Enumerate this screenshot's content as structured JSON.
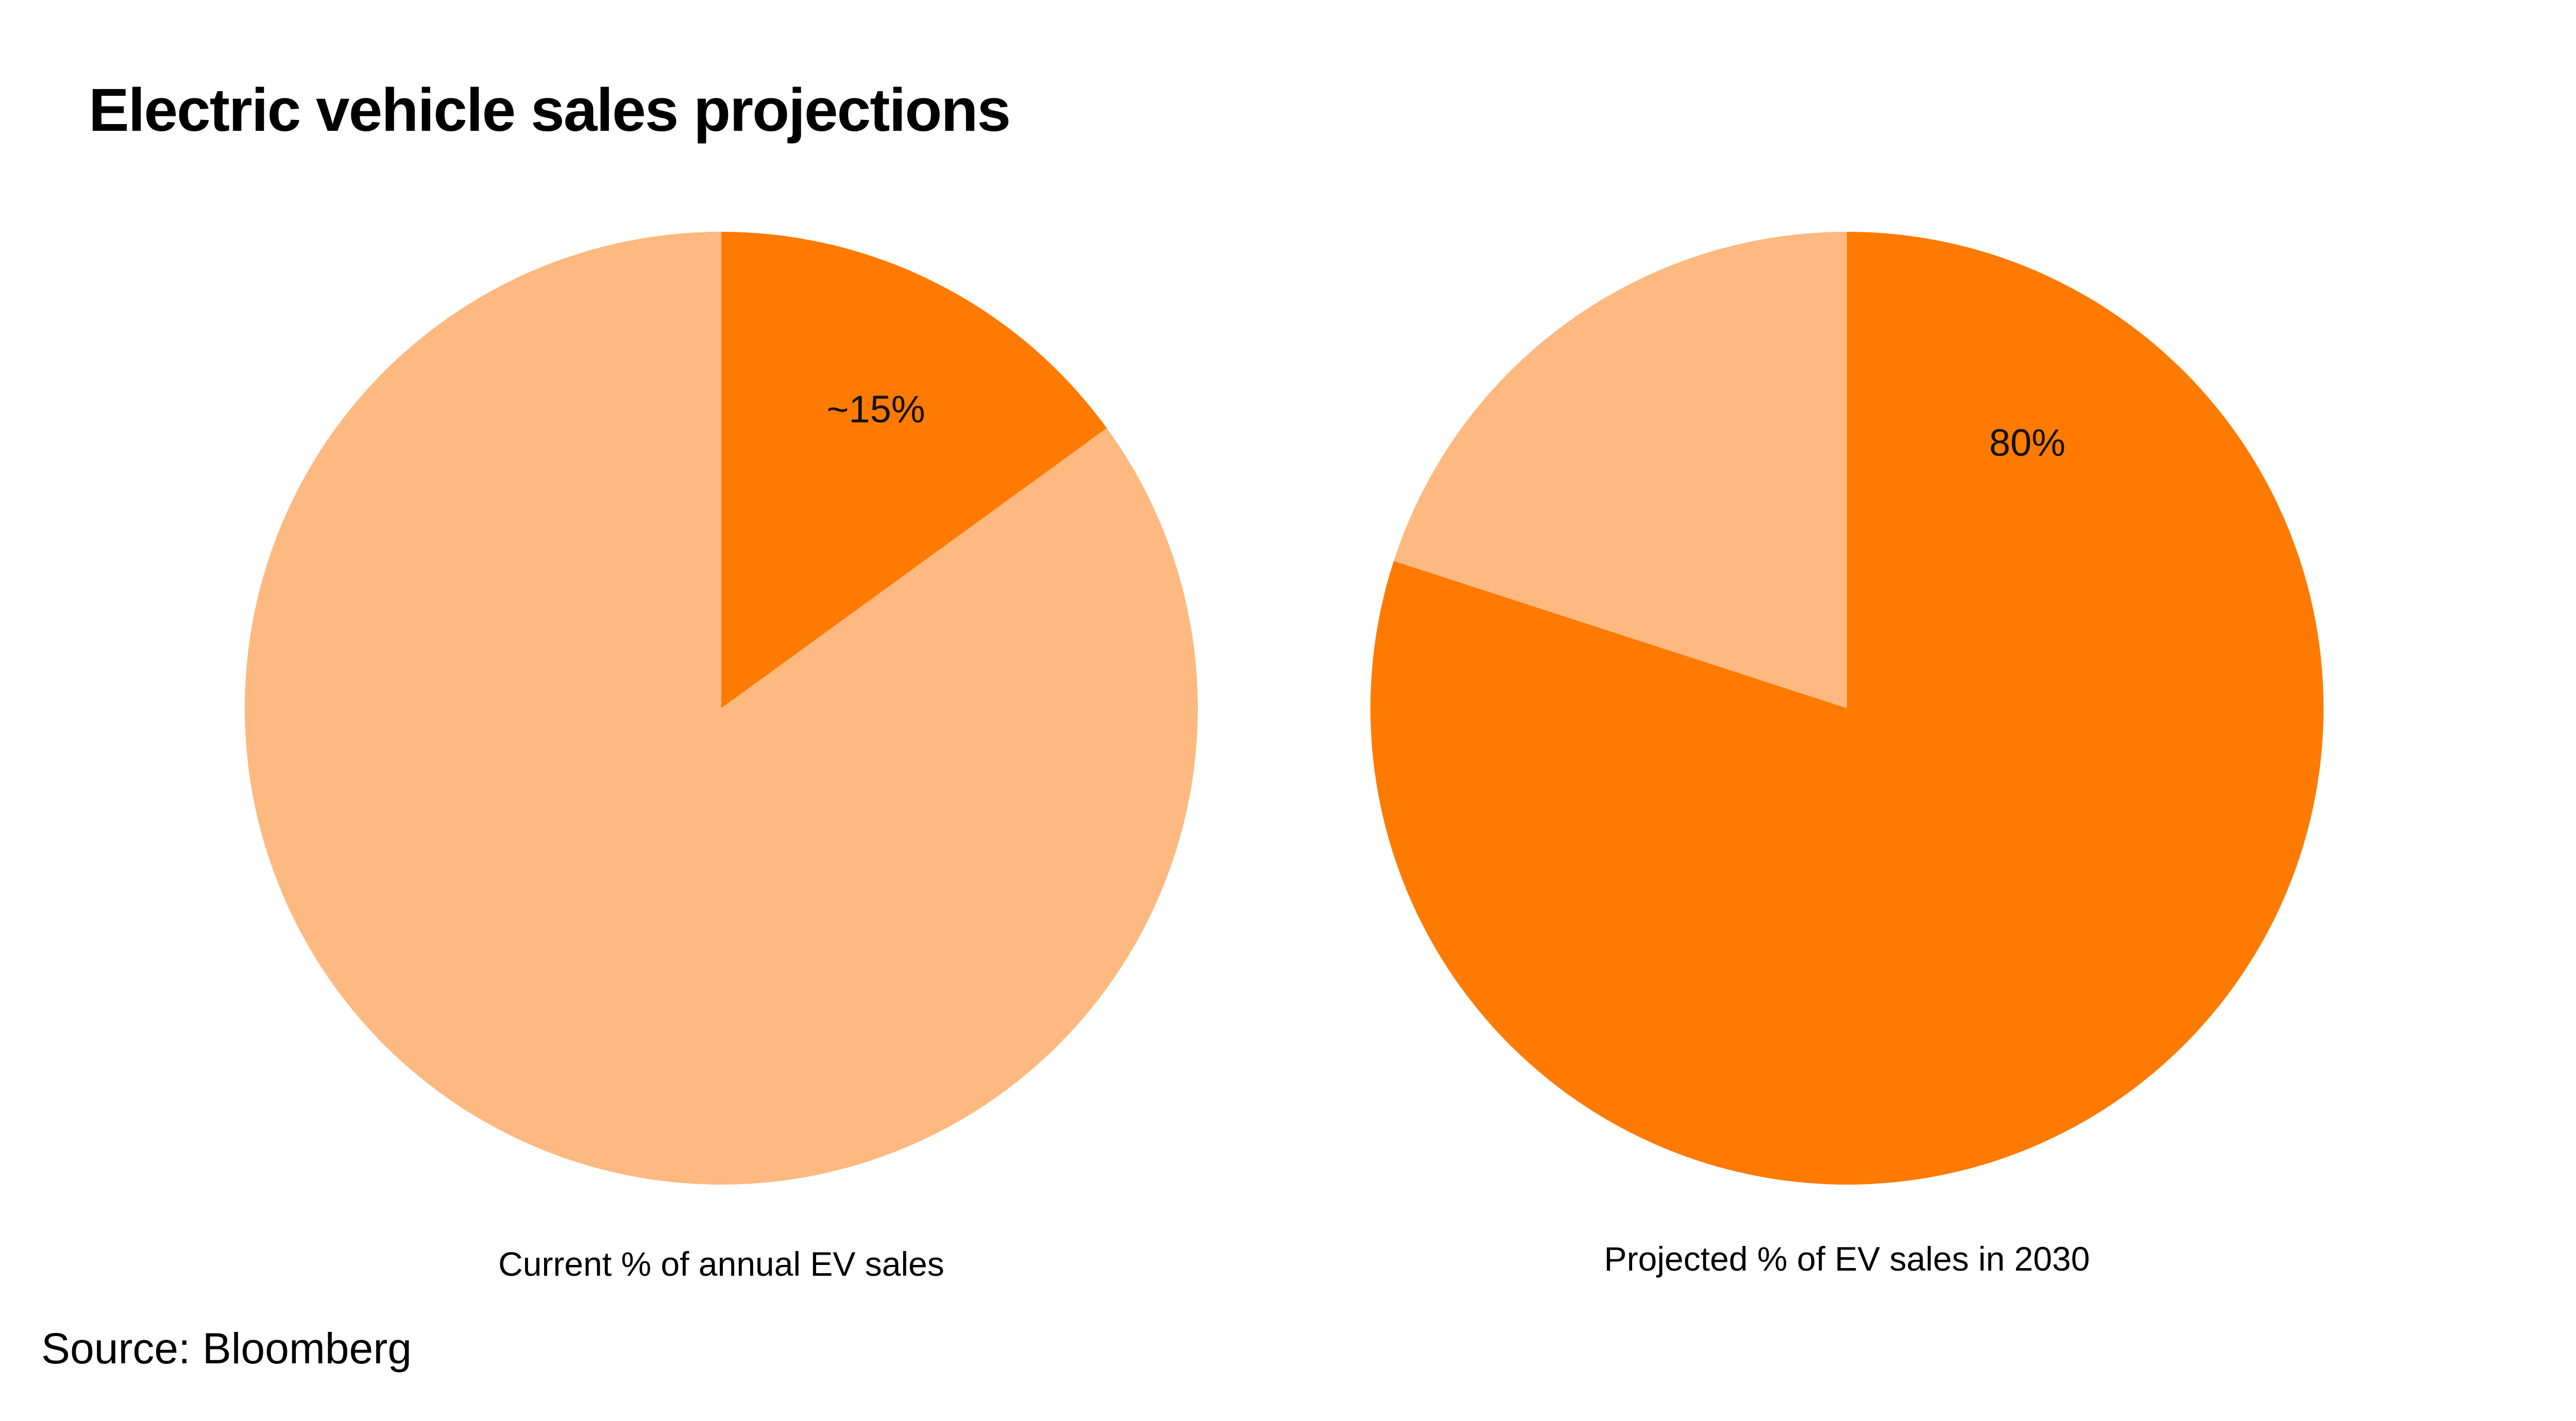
{
  "title": "Electric vehicle sales projections",
  "source": "Source: Bloomberg",
  "colors": {
    "highlight": "#FF7A00",
    "remainder": "#FDB97F"
  },
  "chart_data": [
    {
      "type": "pie",
      "title": "Current % of annual EV sales",
      "slices": [
        {
          "value": 15,
          "label": "~15%",
          "color": "#FF7A00"
        },
        {
          "value": 85,
          "label": "",
          "color": "#FDB97F"
        }
      ]
    },
    {
      "type": "pie",
      "title": "Projected % of EV sales in 2030",
      "slices": [
        {
          "value": 80,
          "label": "80%",
          "color": "#FF7A00"
        },
        {
          "value": 20,
          "label": "",
          "color": "#FDB97F"
        }
      ]
    }
  ]
}
